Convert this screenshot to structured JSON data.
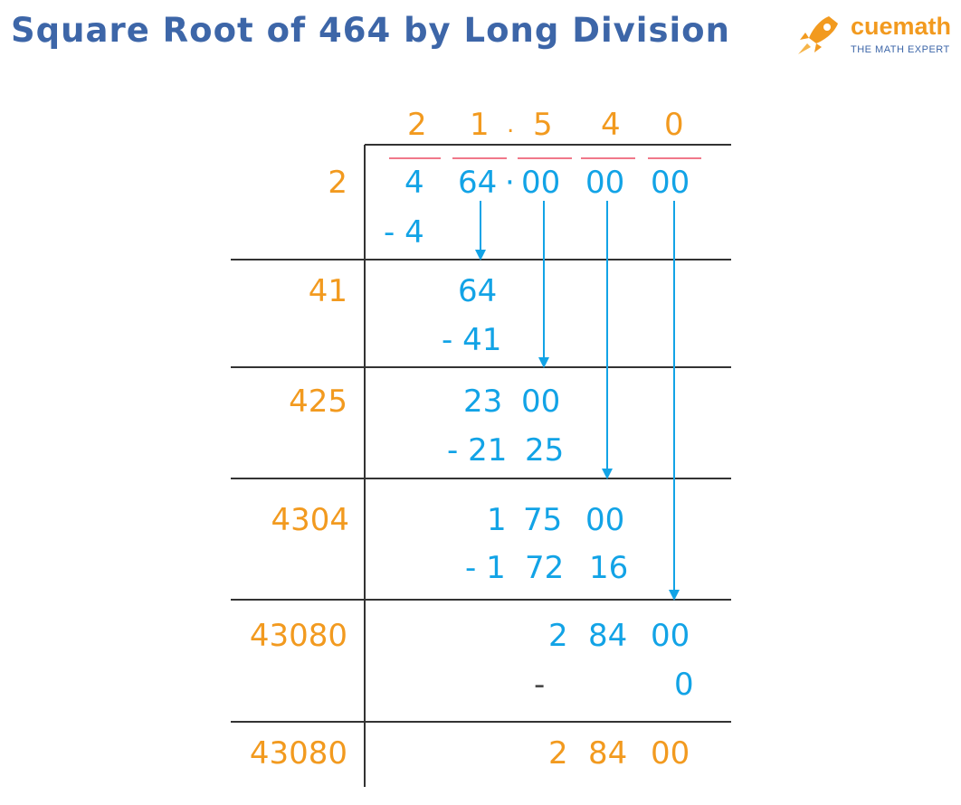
{
  "title": "Square Root of 464 by Long Division",
  "logo": {
    "name": "cuemath",
    "tagline": "THE MATH EXPERT"
  },
  "quotient": [
    "2",
    "1",
    ".",
    "5",
    "4",
    "0"
  ],
  "dividend": [
    "4",
    "64",
    "·",
    "00",
    "00",
    "00"
  ],
  "divisors": [
    "2",
    "41",
    "425",
    "4304",
    "43080",
    "43080"
  ],
  "step1": {
    "subtract": "- 4"
  },
  "step2": {
    "bring_down": "64",
    "subtract": "- 41"
  },
  "step3": {
    "bring_down": [
      "23",
      "00"
    ],
    "subtract": [
      "- 21",
      "25"
    ]
  },
  "step4": {
    "bring_down": [
      "1",
      "75",
      "00"
    ],
    "subtract": [
      "- 1",
      "72",
      "16"
    ]
  },
  "step5": {
    "bring_down": [
      "2",
      "84",
      "00"
    ],
    "subtract": [
      "-",
      "0"
    ]
  },
  "remainder": [
    "2",
    "84",
    "00"
  ],
  "colors": {
    "title": "#3d66a8",
    "orange": "#f29a1f",
    "blue": "#12a3e6",
    "pair_mark": "#f0788a",
    "line": "#333333"
  }
}
